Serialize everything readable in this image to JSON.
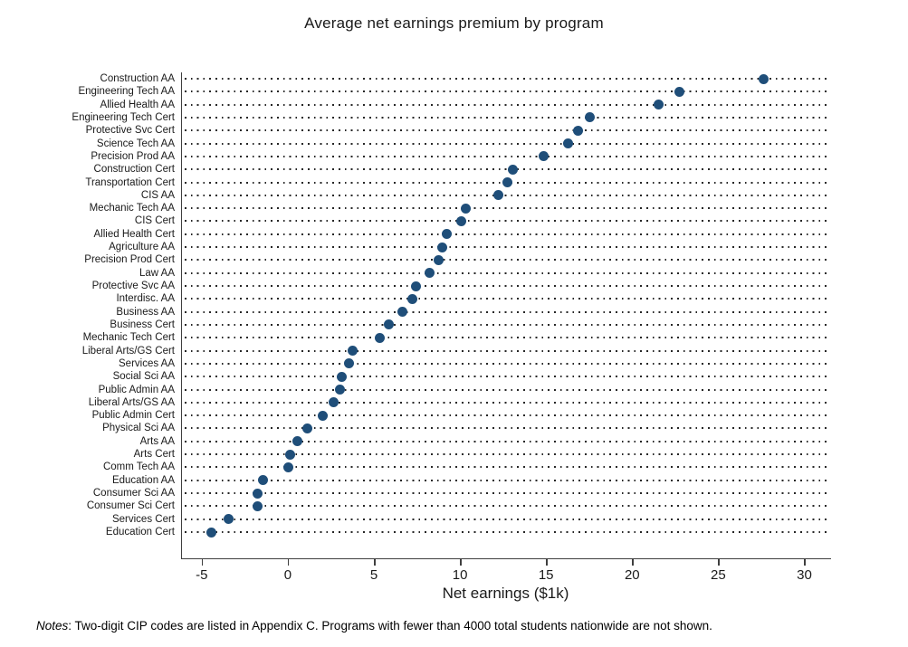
{
  "chart_data": {
    "type": "scatter",
    "subtype": "dot-plot",
    "title": "Average net earnings premium by program",
    "xlabel": "Net earnings ($1k)",
    "xlim": [
      -6.2,
      31.5
    ],
    "xticks": [
      -5,
      0,
      5,
      10,
      15,
      20,
      25,
      30
    ],
    "legend": "none",
    "grid": "dotted horizontal leader lines per category",
    "dot_color": "#1f4e79",
    "leader_color": "#262626",
    "axis_color": "#3f3f3f",
    "categories": [
      "Construction AA",
      "Engineering Tech AA",
      "Allied Health AA",
      "Engineering Tech Cert",
      "Protective Svc Cert",
      "Science Tech AA",
      "Precision Prod AA",
      "Construction Cert",
      "Transportation Cert",
      "CIS AA",
      "Mechanic Tech AA",
      "CIS Cert",
      "Allied Health Cert",
      "Agriculture AA",
      "Precision Prod Cert",
      "Law AA",
      "Protective Svc AA",
      "Interdisc. AA",
      "Business AA",
      "Business Cert",
      "Mechanic Tech Cert",
      "Liberal Arts/GS Cert",
      "Services AA",
      "Social Sci AA",
      "Public Admin AA",
      "Liberal Arts/GS AA",
      "Public Admin Cert",
      "Physical Sci AA",
      "Arts AA",
      "Arts Cert",
      "Comm Tech AA",
      "Education AA",
      "Consumer Sci AA",
      "Consumer Sci Cert",
      "Services Cert",
      "Education Cert"
    ],
    "values": [
      27.6,
      22.7,
      21.5,
      17.5,
      16.8,
      16.2,
      14.8,
      13.0,
      12.7,
      12.2,
      10.3,
      10.0,
      9.2,
      8.9,
      8.7,
      8.2,
      7.4,
      7.2,
      6.6,
      5.8,
      5.3,
      3.7,
      3.5,
      3.1,
      3.0,
      2.6,
      2.0,
      1.1,
      0.5,
      0.1,
      0.0,
      -1.5,
      -1.8,
      -1.8,
      -3.5,
      -4.5
    ]
  },
  "notes": {
    "prefix": "Notes",
    "text": ": Two-digit CIP codes are listed in Appendix C. Programs with fewer than 4000 total students nationwide are not shown."
  }
}
